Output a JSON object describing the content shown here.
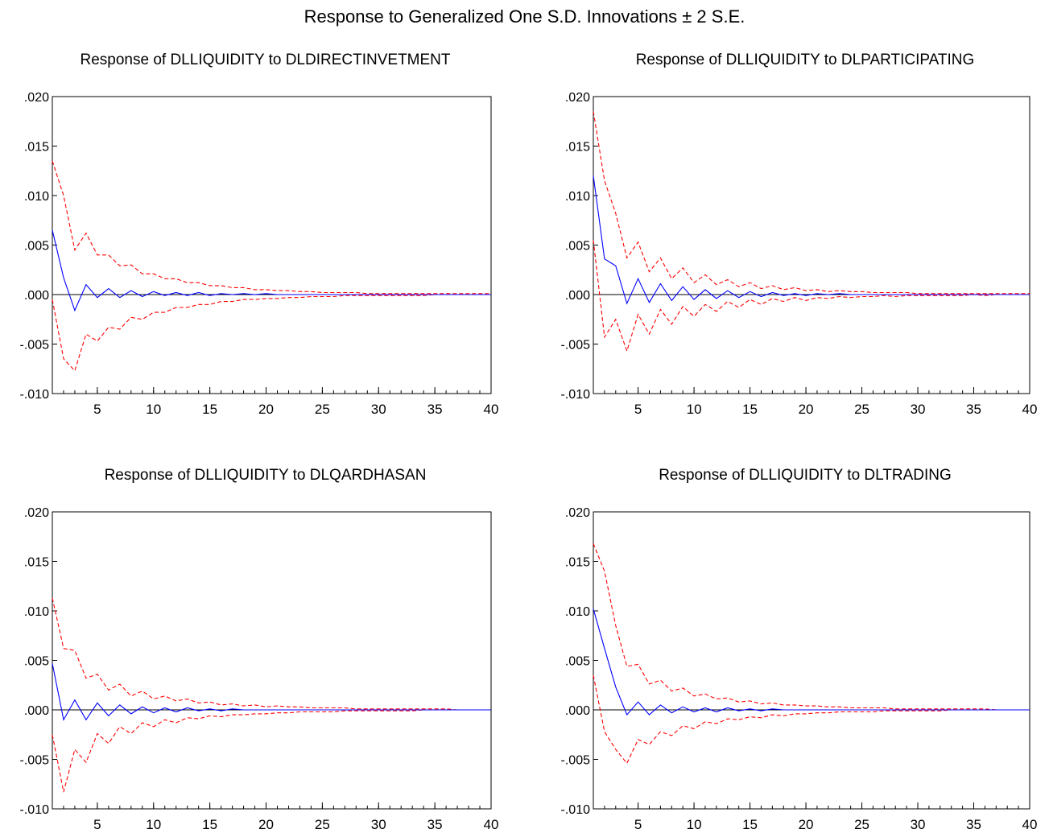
{
  "title": "Response to Generalized One S.D. Innovations ± 2 S.E.",
  "colors": {
    "response": "#0000ff",
    "bands": "#ff0000",
    "zero_line": "#000000",
    "frame": "#000000"
  },
  "chart_data": [
    {
      "type": "line",
      "title": "Response of DLLIQUIDITY to DLDIRECTINVETMENT",
      "x": [
        1,
        2,
        3,
        4,
        5,
        6,
        7,
        8,
        9,
        10,
        11,
        12,
        13,
        14,
        15,
        16,
        17,
        18,
        19,
        20,
        21,
        22,
        23,
        24,
        25,
        26,
        27,
        28,
        29,
        30,
        31,
        32,
        33,
        34,
        35,
        36,
        37,
        38,
        39,
        40
      ],
      "xlim": [
        1,
        40
      ],
      "xticks": [
        5,
        10,
        15,
        20,
        25,
        30,
        35,
        40
      ],
      "ylim": [
        -0.01,
        0.02
      ],
      "yticks": [
        -0.01,
        -0.005,
        0.0,
        0.005,
        0.01,
        0.015,
        0.02
      ],
      "ytick_labels": [
        "-.010",
        "-.005",
        ".000",
        ".005",
        ".010",
        ".015",
        ".020"
      ],
      "series": [
        {
          "role": "response",
          "style": "solid",
          "values": [
            0.0065,
            0.0017,
            -0.0016,
            0.001,
            -0.0003,
            0.0006,
            -0.0003,
            0.0004,
            -0.0002,
            0.0003,
            -0.0001,
            0.0002,
            -0.0001,
            0.0002,
            -0.0001,
            0.0001,
            0,
            0.0001,
            0,
            0.0001,
            0,
            0,
            0,
            0,
            0,
            0,
            0,
            0,
            0,
            0,
            0,
            0,
            0,
            0,
            0,
            0,
            0,
            0,
            0,
            0
          ]
        },
        {
          "role": "upper_band",
          "style": "dashed",
          "values": [
            0.0135,
            0.01,
            0.0045,
            0.0062,
            0.004,
            0.004,
            0.0029,
            0.003,
            0.0021,
            0.0021,
            0.0016,
            0.0016,
            0.0012,
            0.0012,
            0.0009,
            0.0009,
            0.0007,
            0.0007,
            0.0005,
            0.0005,
            0.0004,
            0.0004,
            0.0003,
            0.0003,
            0.0002,
            0.0002,
            0.0002,
            0.0002,
            0.0001,
            0.0001,
            0.0001,
            0.0001,
            0.0001,
            0.0001,
            0.0001,
            0.0001,
            0.0001,
            0.0001,
            0.0001,
            0.0001
          ]
        },
        {
          "role": "lower_band",
          "style": "dashed",
          "values": [
            -0.0005,
            -0.0065,
            -0.0077,
            -0.004,
            -0.0047,
            -0.0033,
            -0.0035,
            -0.0023,
            -0.0025,
            -0.0018,
            -0.0018,
            -0.0013,
            -0.0013,
            -0.001,
            -0.001,
            -0.0007,
            -0.0007,
            -0.0005,
            -0.0005,
            -0.0004,
            -0.0004,
            -0.0003,
            -0.0003,
            -0.0002,
            -0.0002,
            -0.0002,
            -0.0001,
            -0.0001,
            -0.0001,
            -0.0001,
            -0.0001,
            -0.0001,
            -0.0001,
            -0.0001,
            0,
            0,
            0,
            0,
            0,
            0
          ]
        }
      ]
    },
    {
      "type": "line",
      "title": "Response of DLLIQUIDITY to DLPARTICIPATING",
      "x": [
        1,
        2,
        3,
        4,
        5,
        6,
        7,
        8,
        9,
        10,
        11,
        12,
        13,
        14,
        15,
        16,
        17,
        18,
        19,
        20,
        21,
        22,
        23,
        24,
        25,
        26,
        27,
        28,
        29,
        30,
        31,
        32,
        33,
        34,
        35,
        36,
        37,
        38,
        39,
        40
      ],
      "xlim": [
        1,
        40
      ],
      "xticks": [
        5,
        10,
        15,
        20,
        25,
        30,
        35,
        40
      ],
      "ylim": [
        -0.01,
        0.02
      ],
      "yticks": [
        -0.01,
        -0.005,
        0.0,
        0.005,
        0.01,
        0.015,
        0.02
      ],
      "ytick_labels": [
        "-.010",
        "-.005",
        ".000",
        ".005",
        ".010",
        ".015",
        ".020"
      ],
      "series": [
        {
          "role": "response",
          "style": "solid",
          "values": [
            0.012,
            0.0036,
            0.0029,
            -0.0009,
            0.0016,
            -0.0008,
            0.0011,
            -0.0006,
            0.0008,
            -0.0005,
            0.0005,
            -0.0004,
            0.0004,
            -0.0003,
            0.0003,
            -0.0002,
            0.0002,
            -0.0001,
            0.0001,
            -0.0001,
            0.0001,
            0,
            0.0001,
            0,
            0,
            0,
            0,
            0,
            0,
            0,
            0,
            0,
            0,
            0,
            0,
            0,
            0,
            0,
            0,
            0
          ]
        },
        {
          "role": "upper_band",
          "style": "dashed",
          "values": [
            0.0185,
            0.0115,
            0.0082,
            0.0037,
            0.0053,
            0.0023,
            0.0037,
            0.0016,
            0.0027,
            0.0012,
            0.002,
            0.001,
            0.0015,
            0.0008,
            0.0012,
            0.0006,
            0.0009,
            0.0005,
            0.0007,
            0.0004,
            0.0005,
            0.0003,
            0.0004,
            0.0003,
            0.0003,
            0.0002,
            0.0002,
            0.0002,
            0.0002,
            0.0001,
            0.0001,
            0.0001,
            0.0001,
            0.0001,
            0.0001,
            0.0001,
            0.0001,
            0.0001,
            0.0001,
            0.0001
          ]
        },
        {
          "role": "lower_band",
          "style": "dashed",
          "values": [
            0.0055,
            -0.0043,
            -0.0025,
            -0.0057,
            -0.002,
            -0.004,
            -0.0015,
            -0.003,
            -0.0012,
            -0.0022,
            -0.001,
            -0.0017,
            -0.0007,
            -0.0013,
            -0.0005,
            -0.001,
            -0.0004,
            -0.0007,
            -0.0003,
            -0.0006,
            -0.0003,
            -0.0004,
            -0.0002,
            -0.0003,
            -0.0002,
            -0.0002,
            -0.0001,
            -0.0002,
            -0.0001,
            -0.0001,
            -0.0001,
            -0.0001,
            -0.0001,
            -0.0001,
            0,
            -0.0001,
            0,
            0,
            0,
            0
          ]
        }
      ]
    },
    {
      "type": "line",
      "title": "Response of DLLIQUIDITY to DLQARDHASAN",
      "x": [
        1,
        2,
        3,
        4,
        5,
        6,
        7,
        8,
        9,
        10,
        11,
        12,
        13,
        14,
        15,
        16,
        17,
        18,
        19,
        20,
        21,
        22,
        23,
        24,
        25,
        26,
        27,
        28,
        29,
        30,
        31,
        32,
        33,
        34,
        35,
        36,
        37,
        38,
        39,
        40
      ],
      "xlim": [
        1,
        40
      ],
      "xticks": [
        5,
        10,
        15,
        20,
        25,
        30,
        35,
        40
      ],
      "ylim": [
        -0.01,
        0.02
      ],
      "yticks": [
        -0.01,
        -0.005,
        0.0,
        0.005,
        0.01,
        0.015,
        0.02
      ],
      "ytick_labels": [
        "-.010",
        "-.005",
        ".000",
        ".005",
        ".010",
        ".015",
        ".020"
      ],
      "series": [
        {
          "role": "response",
          "style": "solid",
          "values": [
            0.0047,
            -0.001,
            0.001,
            -0.001,
            0.0007,
            -0.0006,
            0.0005,
            -0.0004,
            0.0003,
            -0.0003,
            0.0002,
            -0.0002,
            0.0002,
            -0.0001,
            0.0001,
            -0.0001,
            0.0001,
            0,
            0,
            0,
            0,
            0,
            0,
            0,
            0,
            0,
            0,
            0,
            0,
            0,
            0,
            0,
            0,
            0,
            0,
            0,
            0,
            0,
            0,
            0
          ]
        },
        {
          "role": "upper_band",
          "style": "dashed",
          "values": [
            0.0113,
            0.0062,
            0.006,
            0.0032,
            0.0036,
            0.002,
            0.0026,
            0.0014,
            0.0019,
            0.0011,
            0.0014,
            0.0009,
            0.0011,
            0.0007,
            0.0008,
            0.0005,
            0.0006,
            0.0004,
            0.0005,
            0.0003,
            0.0004,
            0.0003,
            0.0003,
            0.0002,
            0.0002,
            0.0002,
            0.0002,
            0.0001,
            0.0001,
            0.0001,
            0.0001,
            0.0001,
            0.0001,
            0.0001,
            0.0001,
            0.0001,
            0,
            0,
            0,
            0
          ]
        },
        {
          "role": "lower_band",
          "style": "dashed",
          "values": [
            -0.0025,
            -0.0083,
            -0.004,
            -0.0053,
            -0.0024,
            -0.0034,
            -0.0017,
            -0.0024,
            -0.0013,
            -0.0017,
            -0.001,
            -0.0013,
            -0.0008,
            -0.0009,
            -0.0006,
            -0.0007,
            -0.0005,
            -0.0005,
            -0.0004,
            -0.0004,
            -0.0003,
            -0.0003,
            -0.0002,
            -0.0002,
            -0.0002,
            -0.0002,
            -0.0001,
            -0.0001,
            -0.0001,
            -0.0001,
            -0.0001,
            -0.0001,
            -0.0001,
            0,
            0,
            0,
            0,
            0,
            0,
            0
          ]
        }
      ]
    },
    {
      "type": "line",
      "title": "Response of DLLIQUIDITY to DLTRADING",
      "x": [
        1,
        2,
        3,
        4,
        5,
        6,
        7,
        8,
        9,
        10,
        11,
        12,
        13,
        14,
        15,
        16,
        17,
        18,
        19,
        20,
        21,
        22,
        23,
        24,
        25,
        26,
        27,
        28,
        29,
        30,
        31,
        32,
        33,
        34,
        35,
        36,
        37,
        38,
        39,
        40
      ],
      "xlim": [
        1,
        40
      ],
      "xticks": [
        5,
        10,
        15,
        20,
        25,
        30,
        35,
        40
      ],
      "ylim": [
        -0.01,
        0.02
      ],
      "yticks": [
        -0.01,
        -0.005,
        0.0,
        0.005,
        0.01,
        0.015,
        0.02
      ],
      "ytick_labels": [
        "-.010",
        "-.005",
        ".000",
        ".005",
        ".010",
        ".015",
        ".020"
      ],
      "series": [
        {
          "role": "response",
          "style": "solid",
          "values": [
            0.0102,
            0.0062,
            0.0023,
            -0.0005,
            0.0008,
            -0.0005,
            0.0005,
            -0.0003,
            0.0003,
            -0.0002,
            0.0002,
            -0.0002,
            0.0002,
            -0.0001,
            0.0001,
            -0.0001,
            0.0001,
            0,
            0,
            0,
            0,
            0,
            0,
            0,
            0,
            0,
            0,
            0,
            0,
            0,
            0,
            0,
            0,
            0,
            0,
            0,
            0,
            0,
            0,
            0
          ]
        },
        {
          "role": "upper_band",
          "style": "dashed",
          "values": [
            0.0168,
            0.014,
            0.0085,
            0.0044,
            0.0046,
            0.0026,
            0.003,
            0.0019,
            0.0022,
            0.0014,
            0.0016,
            0.0011,
            0.0012,
            0.0008,
            0.0009,
            0.0006,
            0.0007,
            0.0005,
            0.0005,
            0.0004,
            0.0004,
            0.0003,
            0.0003,
            0.0002,
            0.0002,
            0.0002,
            0.0002,
            0.0001,
            0.0001,
            0.0001,
            0.0001,
            0.0001,
            0.0001,
            0.0001,
            0.0001,
            0.0001,
            0,
            0,
            0,
            0
          ]
        },
        {
          "role": "lower_band",
          "style": "dashed",
          "values": [
            0.0035,
            -0.0022,
            -0.004,
            -0.0054,
            -0.003,
            -0.0035,
            -0.0022,
            -0.0026,
            -0.0016,
            -0.0019,
            -0.0012,
            -0.0014,
            -0.0009,
            -0.001,
            -0.0007,
            -0.0008,
            -0.0005,
            -0.0006,
            -0.0004,
            -0.0004,
            -0.0003,
            -0.0003,
            -0.0002,
            -0.0002,
            -0.0002,
            -0.0002,
            -0.0001,
            -0.0001,
            -0.0001,
            -0.0001,
            -0.0001,
            -0.0001,
            0,
            0,
            0,
            0,
            0,
            0,
            0,
            0
          ]
        }
      ]
    }
  ]
}
